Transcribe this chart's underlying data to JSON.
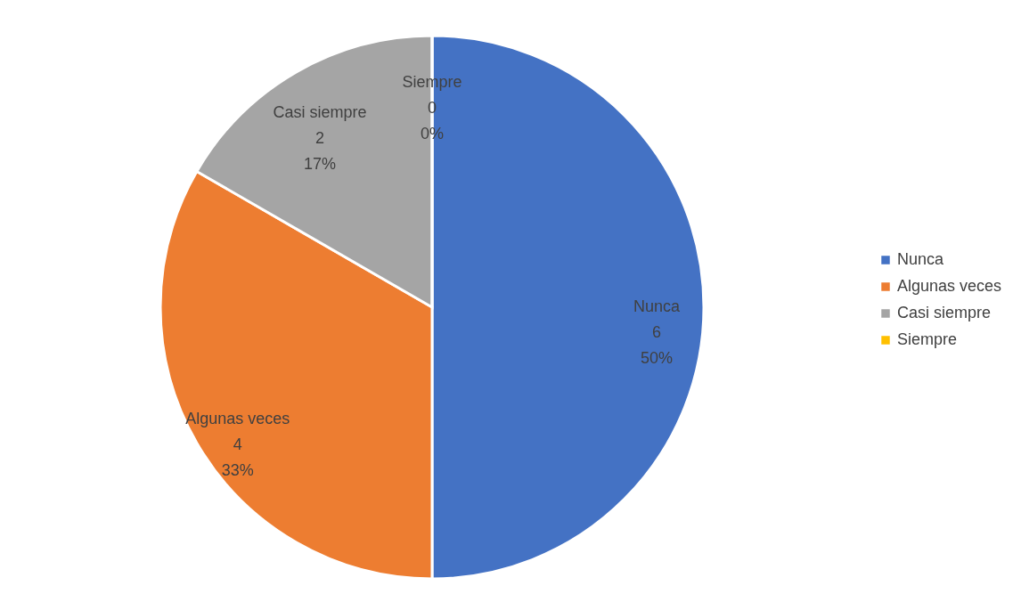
{
  "chart_data": {
    "type": "pie",
    "categories": [
      "Nunca",
      "Algunas veces",
      "Casi siempre",
      "Siempre"
    ],
    "values": [
      6,
      4,
      2,
      0
    ],
    "value_labels": [
      "6\n50%",
      "4\n33%",
      "2\n17%",
      "0\n0%"
    ],
    "colors": [
      "#4472c4",
      "#ed7d31",
      "#a5a5a5",
      "#ffc000"
    ],
    "legend": "right"
  }
}
